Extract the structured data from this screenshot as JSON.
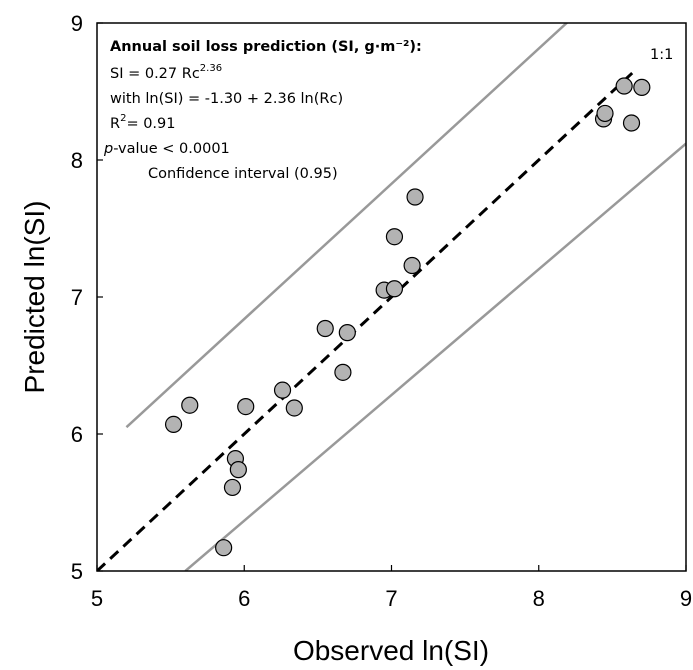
{
  "chart_data": {
    "type": "scatter",
    "title": "",
    "xlabel": "Observed ln(SI)",
    "ylabel": "Predicted ln(SI)",
    "xlim": [
      5,
      9
    ],
    "ylim": [
      5,
      9
    ],
    "x_ticks": [
      "5",
      "6",
      "7",
      "8",
      "9"
    ],
    "y_ticks": [
      "5",
      "6",
      "7",
      "8",
      "9"
    ],
    "grid": false,
    "series": [
      {
        "points": [
          {
            "x": 5.52,
            "y": 6.07
          },
          {
            "x": 5.63,
            "y": 6.21
          },
          {
            "x": 5.86,
            "y": 5.17
          },
          {
            "x": 5.92,
            "y": 5.61
          },
          {
            "x": 5.94,
            "y": 5.82
          },
          {
            "x": 5.96,
            "y": 5.74
          },
          {
            "x": 6.01,
            "y": 6.2
          },
          {
            "x": 6.26,
            "y": 6.32
          },
          {
            "x": 6.34,
            "y": 6.19
          },
          {
            "x": 6.55,
            "y": 6.77
          },
          {
            "x": 6.67,
            "y": 6.45
          },
          {
            "x": 6.7,
            "y": 6.74
          },
          {
            "x": 6.95,
            "y": 7.05
          },
          {
            "x": 7.02,
            "y": 7.06
          },
          {
            "x": 7.02,
            "y": 7.44
          },
          {
            "x": 7.14,
            "y": 7.23
          },
          {
            "x": 7.16,
            "y": 7.73
          },
          {
            "x": 8.44,
            "y": 8.3
          },
          {
            "x": 8.45,
            "y": 8.34
          },
          {
            "x": 8.58,
            "y": 8.54
          },
          {
            "x": 8.63,
            "y": 8.27
          },
          {
            "x": 8.7,
            "y": 8.53
          }
        ]
      }
    ],
    "reference_line": {
      "label": "1:1",
      "style": "dashed",
      "from": [
        5,
        5
      ],
      "to": [
        8.65,
        8.65
      ]
    },
    "confidence_band": {
      "label": "Confidence interval (0.95)",
      "upper": {
        "from": [
          5.2,
          6.05
        ],
        "to": [
          9.0,
          9.8
        ]
      },
      "lower": {
        "from": [
          5.6,
          5.0
        ],
        "to": [
          9.0,
          8.12
        ]
      }
    },
    "colors": {
      "points": "#b3b3b3",
      "point_stroke": "#000000",
      "band": "#999999",
      "reference": "#000000"
    }
  },
  "annotation": {
    "title": "Annual soil loss prediction (SI, g·m⁻²):",
    "equation_base": "SI =  0.27 Rc",
    "equation_exp": "2.36",
    "log_equation": "with ln(SI) = -1.30 + 2.36 ln(Rc)",
    "r2_prefix": "R",
    "r2_sup": "2",
    "r2_value": "= 0.91",
    "p_italic": "p",
    "p_rest": "-value < 0.0001",
    "ci_label": "Confidence interval (0.95)"
  }
}
